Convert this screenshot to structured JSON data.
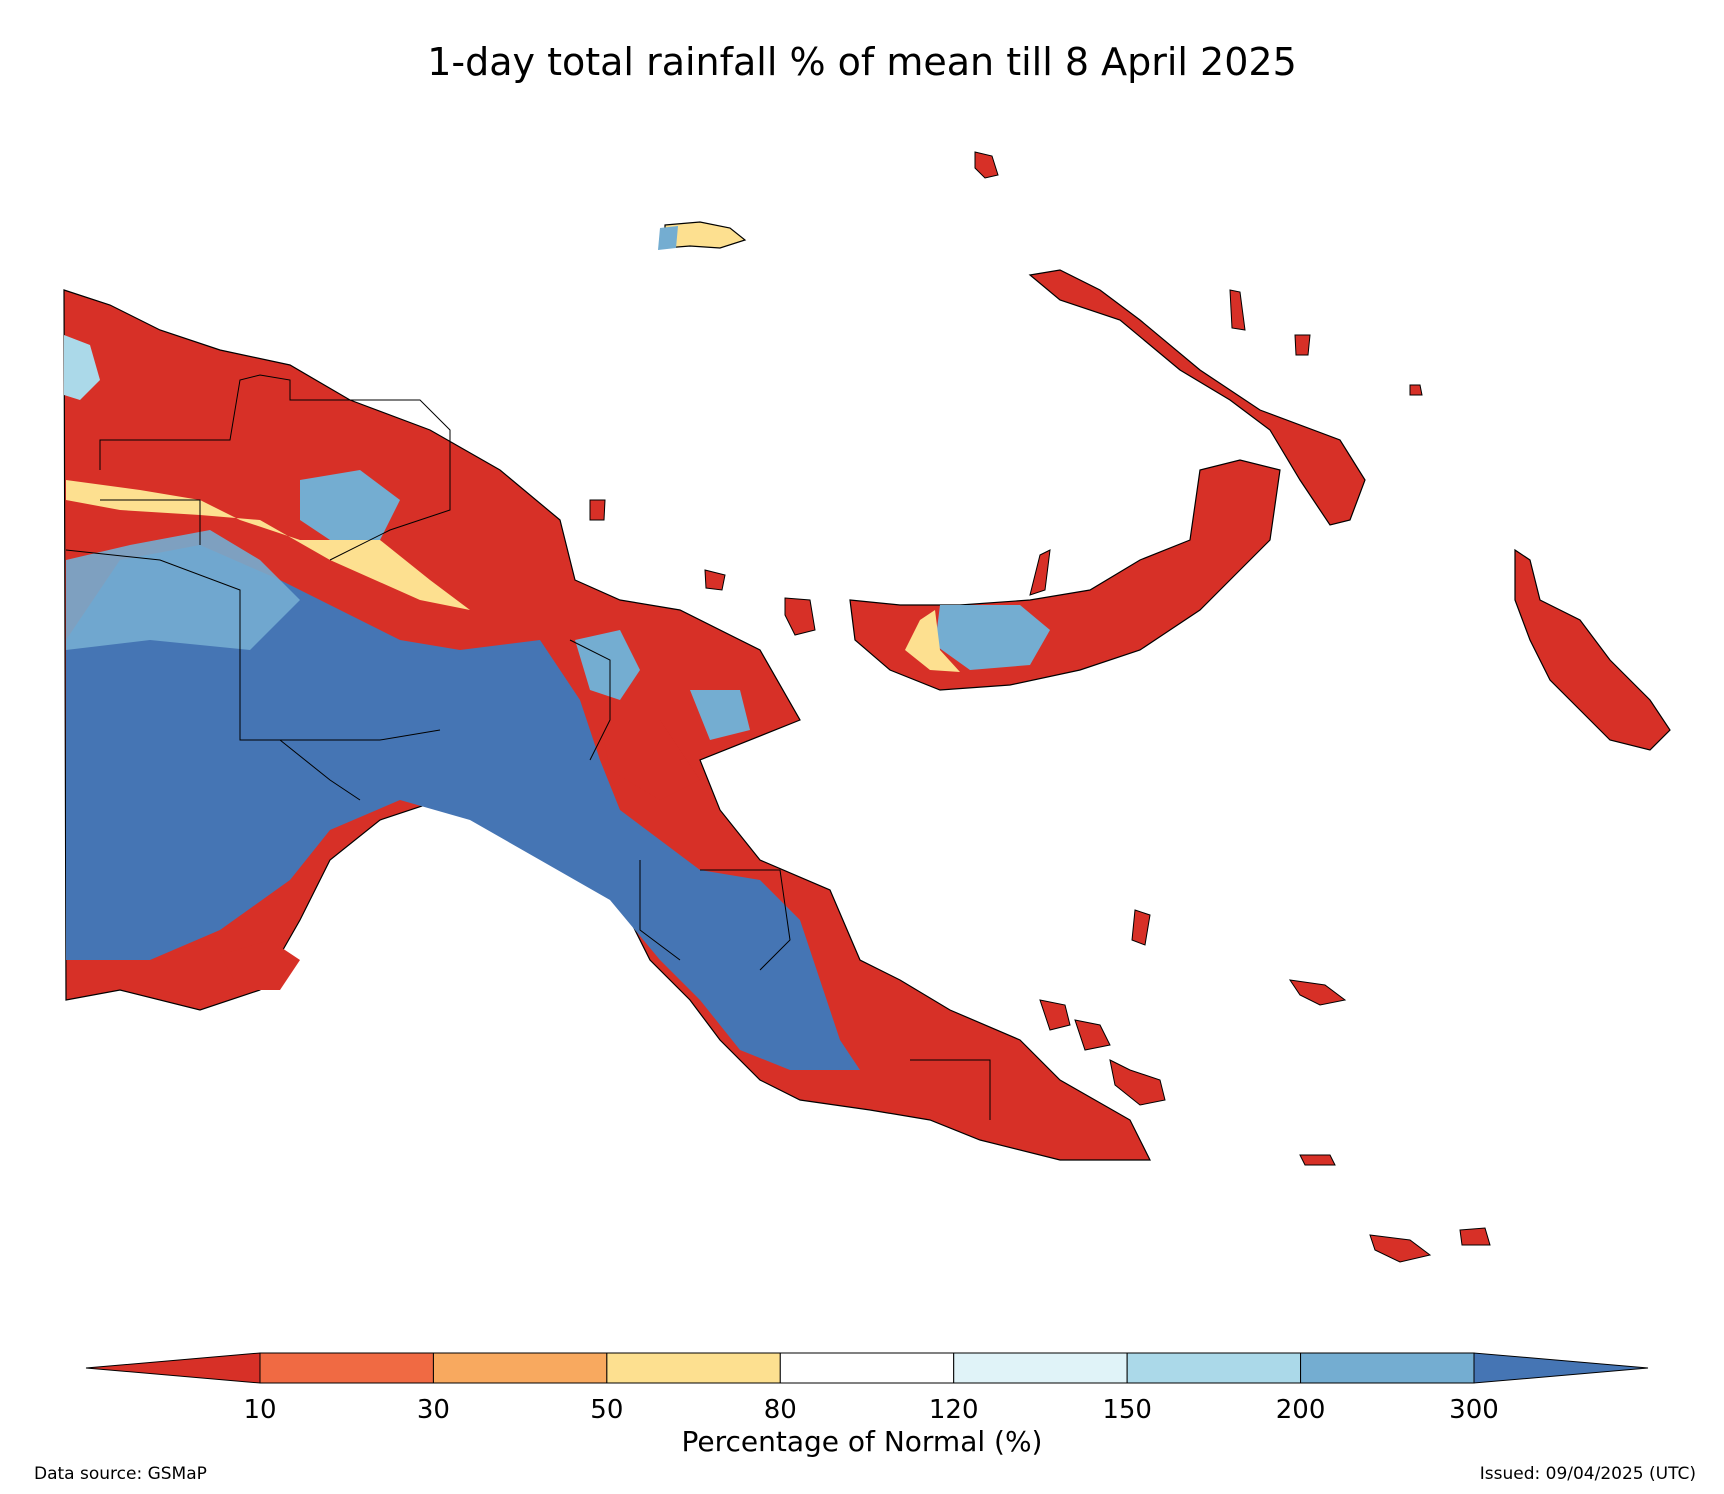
{
  "title": "1-day total rainfall % of mean till 8 April 2025",
  "colors": {
    "lt10": "#d73027",
    "10-30": "#f06a43",
    "30-50": "#f8a95f",
    "50-80": "#fde090",
    "80-120": "#ffffff",
    "120-150": "#e0f3f8",
    "150-200": "#abd9e9",
    "200-300": "#74add1",
    "gt300": "#4575b4"
  },
  "colorbar": {
    "ticks": [
      "10",
      "30",
      "50",
      "80",
      "120",
      "150",
      "200",
      "300"
    ],
    "label": "Percentage of Normal (%)"
  },
  "footer": {
    "source": "Data source: GSMaP",
    "issued": "Issued: 09/04/2025 (UTC)"
  }
}
